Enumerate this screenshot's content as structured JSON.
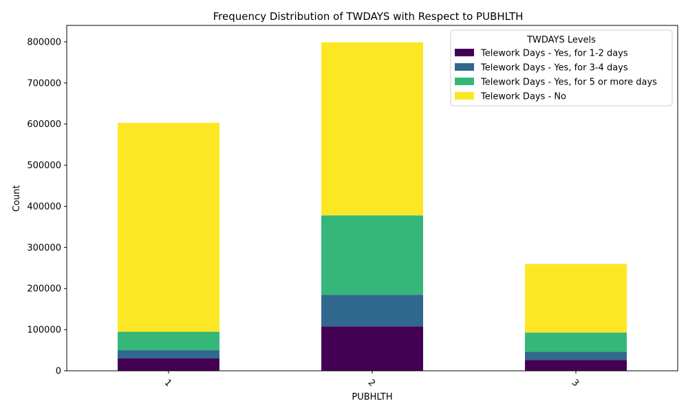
{
  "chart_data": {
    "type": "bar",
    "stacked": true,
    "title": "Frequency Distribution of TWDAYS with Respect to PUBHLTH",
    "xlabel": "PUBHLTH",
    "ylabel": "Count",
    "categories": [
      "1",
      "2",
      "3"
    ],
    "ylim": [
      0,
      840000
    ],
    "yticks": [
      0,
      100000,
      200000,
      300000,
      400000,
      500000,
      600000,
      700000,
      800000
    ],
    "ytick_labels": [
      "0",
      "100000",
      "200000",
      "300000",
      "400000",
      "500000",
      "600000",
      "700000",
      "800000"
    ],
    "grid": false,
    "legend": {
      "title": "TWDAYS Levels",
      "position": "top-right"
    },
    "series": [
      {
        "name": "Telework Days - Yes, for 1-2 days",
        "color": "#440154",
        "values": [
          30000,
          108000,
          26000
        ]
      },
      {
        "name": "Telework Days - Yes, for 3-4 days",
        "color": "#31688e",
        "values": [
          20000,
          77000,
          20000
        ]
      },
      {
        "name": "Telework Days - Yes, for 5 or more days",
        "color": "#35b779",
        "values": [
          45000,
          193000,
          47000
        ]
      },
      {
        "name": "Telework Days - No",
        "color": "#fde725",
        "values": [
          508000,
          421000,
          167000
        ]
      }
    ]
  }
}
